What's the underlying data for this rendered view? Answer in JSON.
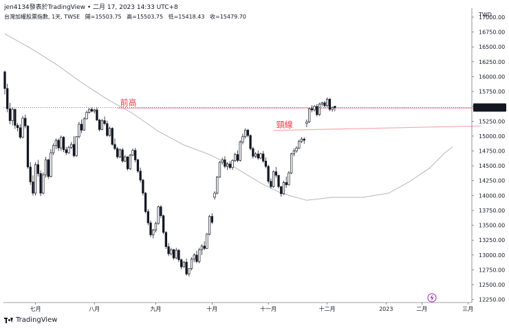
{
  "header": {
    "publisher": "jen4134發表於TradingView • 二月 17, 2023 14:33 UTC+8"
  },
  "legend": {
    "symbol": "台灣加權股票指數, 1天, TWSE",
    "open": "開=15503.75",
    "high": "高=15503.75",
    "low": "低=15418.43",
    "close": "收=15479.70"
  },
  "footer": {
    "brand": "TradingView"
  },
  "colors": {
    "up": "#ffffff",
    "down": "#131722",
    "ma": "#b2b5be",
    "annotation": "#f7a5ab",
    "annotation_text": "#f23645",
    "price_tag": "#131722"
  },
  "chart_data": {
    "type": "candlestick",
    "currency": "TWD",
    "last_price": "15479.70",
    "yticks": [
      12250,
      12500,
      12750,
      13000,
      13250,
      13500,
      13750,
      14000,
      14250,
      14500,
      14750,
      15000,
      15250,
      15500,
      15750,
      16000,
      16250,
      16500,
      16750,
      17000
    ],
    "ytick_labels": [
      "12250.00",
      "12500.00",
      "12750.00",
      "13000.00",
      "13250.00",
      "13500.00",
      "13750.00",
      "14000.00",
      "14250.00",
      "14500.00",
      "14750.00",
      "15000.00",
      "15250.00",
      "15500.00",
      "15750.00",
      "16000.00",
      "16250.00",
      "16500.00",
      "16750.00",
      "17000.00"
    ],
    "ylim": [
      12200,
      17150
    ],
    "bar_range": [
      0,
      182
    ],
    "xticks": [
      {
        "bar": 12,
        "label": "七月"
      },
      {
        "bar": 35,
        "label": "八月"
      },
      {
        "bar": 59,
        "label": "九月"
      },
      {
        "bar": 81,
        "label": "十月"
      },
      {
        "bar": 103,
        "label": "十一月"
      },
      {
        "bar": 126,
        "label": "十二月"
      },
      {
        "bar": 149,
        "label": "2023"
      },
      {
        "bar": 163,
        "label": "二月"
      },
      {
        "bar": 181,
        "label": "三月"
      }
    ],
    "annotations": [
      {
        "label": "前高",
        "y": [
          15470,
          15470
        ],
        "x": [
          44,
          190
        ]
      },
      {
        "label": "頸線",
        "y": [
          15095,
          15170
        ],
        "x": [
          105,
          186
        ]
      }
    ],
    "moving_average": [
      [
        0,
        16720
      ],
      [
        10,
        16480
      ],
      [
        20,
        16210
      ],
      [
        30,
        15900
      ],
      [
        40,
        15620
      ],
      [
        50,
        15380
      ],
      [
        60,
        15080
      ],
      [
        70,
        14850
      ],
      [
        80,
        14690
      ],
      [
        90,
        14470
      ],
      [
        100,
        14210
      ],
      [
        108,
        14040
      ],
      [
        118,
        13920
      ],
      [
        128,
        13970
      ],
      [
        140,
        13970
      ],
      [
        150,
        14040
      ],
      [
        158,
        14230
      ],
      [
        166,
        14460
      ],
      [
        172,
        14720
      ],
      [
        175,
        14820
      ]
    ],
    "candles": [
      [
        16080,
        16100,
        15700,
        15800
      ],
      [
        15800,
        15880,
        15400,
        15460
      ],
      [
        15460,
        15560,
        15200,
        15260
      ],
      [
        15260,
        15480,
        15180,
        15450
      ],
      [
        15450,
        15460,
        15120,
        15180
      ],
      [
        15180,
        15220,
        15080,
        15140
      ],
      [
        15140,
        15200,
        14950,
        14980
      ],
      [
        14980,
        15340,
        14960,
        15300
      ],
      [
        15300,
        15360,
        15130,
        15170
      ],
      [
        15170,
        15180,
        14450,
        14480
      ],
      [
        14480,
        14560,
        14180,
        14230
      ],
      [
        14230,
        14340,
        14000,
        14040
      ],
      [
        14040,
        14560,
        14000,
        14520
      ],
      [
        14520,
        14600,
        14320,
        14370
      ],
      [
        14370,
        14420,
        13990,
        14040
      ],
      [
        14040,
        14390,
        14020,
        14350
      ],
      [
        14350,
        14650,
        14300,
        14600
      ],
      [
        14600,
        14620,
        14280,
        14320
      ],
      [
        14320,
        14780,
        14300,
        14720
      ],
      [
        14720,
        14880,
        14680,
        14840
      ],
      [
        14840,
        14960,
        14780,
        14930
      ],
      [
        14930,
        14960,
        14750,
        14800
      ],
      [
        14800,
        15010,
        14750,
        14980
      ],
      [
        14980,
        15000,
        14730,
        14770
      ],
      [
        14770,
        14820,
        14680,
        14720
      ],
      [
        14720,
        14840,
        14700,
        14810
      ],
      [
        14810,
        14900,
        14780,
        14860
      ],
      [
        14860,
        15000,
        14640,
        14670
      ],
      [
        14670,
        15000,
        14650,
        14990
      ],
      [
        14990,
        15240,
        14960,
        15200
      ],
      [
        15200,
        15280,
        15050,
        15100
      ],
      [
        15100,
        15320,
        15090,
        15290
      ],
      [
        15290,
        15430,
        15280,
        15400
      ],
      [
        15400,
        15470,
        15380,
        15450
      ],
      [
        15450,
        15480,
        15400,
        15420
      ],
      [
        15420,
        15460,
        15380,
        15440
      ],
      [
        15440,
        15480,
        15250,
        15270
      ],
      [
        15270,
        15290,
        15080,
        15110
      ],
      [
        15110,
        15290,
        15100,
        15260
      ],
      [
        15260,
        15330,
        15180,
        15210
      ],
      [
        15210,
        15260,
        14990,
        15010
      ],
      [
        15010,
        15160,
        14990,
        15130
      ],
      [
        15130,
        15150,
        14840,
        14860
      ],
      [
        14860,
        14960,
        14760,
        14790
      ],
      [
        14790,
        14820,
        14620,
        14650
      ],
      [
        14650,
        14790,
        14630,
        14770
      ],
      [
        14770,
        14800,
        14550,
        14580
      ],
      [
        14580,
        14680,
        14560,
        14650
      ],
      [
        14650,
        14660,
        14420,
        14450
      ],
      [
        14450,
        14700,
        14430,
        14680
      ],
      [
        14680,
        14790,
        14660,
        14760
      ],
      [
        14760,
        14800,
        14560,
        14600
      ],
      [
        14600,
        14620,
        14380,
        14410
      ],
      [
        14410,
        14470,
        14220,
        14260
      ],
      [
        14260,
        14280,
        14000,
        14040
      ],
      [
        14040,
        14060,
        13700,
        13730
      ],
      [
        13730,
        13770,
        13500,
        13540
      ],
      [
        13540,
        13580,
        13300,
        13340
      ],
      [
        13340,
        13440,
        13280,
        13420
      ],
      [
        13420,
        13560,
        13380,
        13530
      ],
      [
        13530,
        13830,
        13510,
        13810
      ],
      [
        13810,
        13840,
        13620,
        13660
      ],
      [
        13660,
        13680,
        13350,
        13380
      ],
      [
        13380,
        13400,
        13100,
        13140
      ],
      [
        13140,
        13200,
        12980,
        13020
      ],
      [
        13020,
        13120,
        12990,
        13090
      ],
      [
        13090,
        13100,
        12920,
        12950
      ],
      [
        12950,
        13120,
        12930,
        13080
      ],
      [
        13080,
        13100,
        12880,
        12920
      ],
      [
        12920,
        12940,
        12760,
        12800
      ],
      [
        12800,
        12900,
        12790,
        12880
      ],
      [
        12880,
        12940,
        12650,
        12680
      ],
      [
        12680,
        12780,
        12640,
        12770
      ],
      [
        12770,
        12960,
        12740,
        12930
      ],
      [
        12930,
        13030,
        12880,
        13000
      ],
      [
        13000,
        13070,
        12860,
        12890
      ],
      [
        12890,
        13120,
        12860,
        13090
      ],
      [
        13090,
        13180,
        13000,
        13150
      ],
      [
        13150,
        13230,
        13080,
        13110
      ],
      [
        13110,
        13370,
        13100,
        13350
      ],
      [
        13350,
        13670,
        13330,
        13650
      ],
      [
        13650,
        13700,
        13520,
        13550
      ],
      [
        13970,
        14070,
        13930,
        14040
      ],
      [
        14040,
        14330,
        14020,
        14310
      ],
      [
        14310,
        14580,
        14300,
        14560
      ],
      [
        14560,
        14640,
        14520,
        14600
      ],
      [
        14600,
        14660,
        14460,
        14490
      ],
      [
        14490,
        14560,
        14430,
        14530
      ],
      [
        14530,
        14580,
        14440,
        14470
      ],
      [
        14470,
        14610,
        14430,
        14590
      ],
      [
        14590,
        14720,
        14560,
        14690
      ],
      [
        14690,
        14760,
        14560,
        14590
      ],
      [
        14590,
        14930,
        14570,
        14900
      ],
      [
        14900,
        15040,
        14860,
        14990
      ],
      [
        14990,
        15130,
        14960,
        15100
      ],
      [
        15100,
        15120,
        14980,
        15010
      ],
      [
        15010,
        15030,
        14760,
        14790
      ],
      [
        14790,
        14820,
        14620,
        14660
      ],
      [
        14660,
        14730,
        14630,
        14700
      ],
      [
        14700,
        14760,
        14600,
        14630
      ],
      [
        14630,
        14720,
        14610,
        14700
      ],
      [
        14700,
        14750,
        14550,
        14580
      ],
      [
        14580,
        14640,
        14460,
        14490
      ],
      [
        14490,
        14520,
        14200,
        14240
      ],
      [
        14240,
        14290,
        14120,
        14150
      ],
      [
        14150,
        14420,
        14130,
        14400
      ],
      [
        14400,
        14480,
        14300,
        14340
      ],
      [
        14340,
        14350,
        14120,
        14150
      ],
      [
        14150,
        14160,
        13980,
        14030
      ],
      [
        14030,
        14250,
        14010,
        14220
      ],
      [
        14220,
        14320,
        14130,
        14180
      ],
      [
        14180,
        14410,
        14170,
        14380
      ],
      [
        14380,
        14720,
        14360,
        14700
      ],
      [
        14700,
        14790,
        14660,
        14750
      ],
      [
        14750,
        14830,
        14720,
        14800
      ],
      [
        14800,
        14940,
        14780,
        14910
      ],
      [
        14910,
        14980,
        14880,
        14950
      ],
      [
        14950,
        14980,
        14870,
        14930
      ],
      [
        15210,
        15280,
        15150,
        15240
      ],
      [
        15240,
        15480,
        15220,
        15460
      ],
      [
        15460,
        15520,
        15400,
        15440
      ],
      [
        15440,
        15520,
        15410,
        15500
      ],
      [
        15500,
        15540,
        15330,
        15360
      ],
      [
        15360,
        15560,
        15340,
        15540
      ],
      [
        15540,
        15580,
        15500,
        15560
      ],
      [
        15560,
        15590,
        15480,
        15510
      ],
      [
        15510,
        15650,
        15490,
        15620
      ],
      [
        15620,
        15640,
        15420,
        15450
      ],
      [
        15450,
        15500,
        15410,
        15480
      ],
      [
        15503.75,
        15503.75,
        15418.43,
        15479.7
      ]
    ]
  }
}
